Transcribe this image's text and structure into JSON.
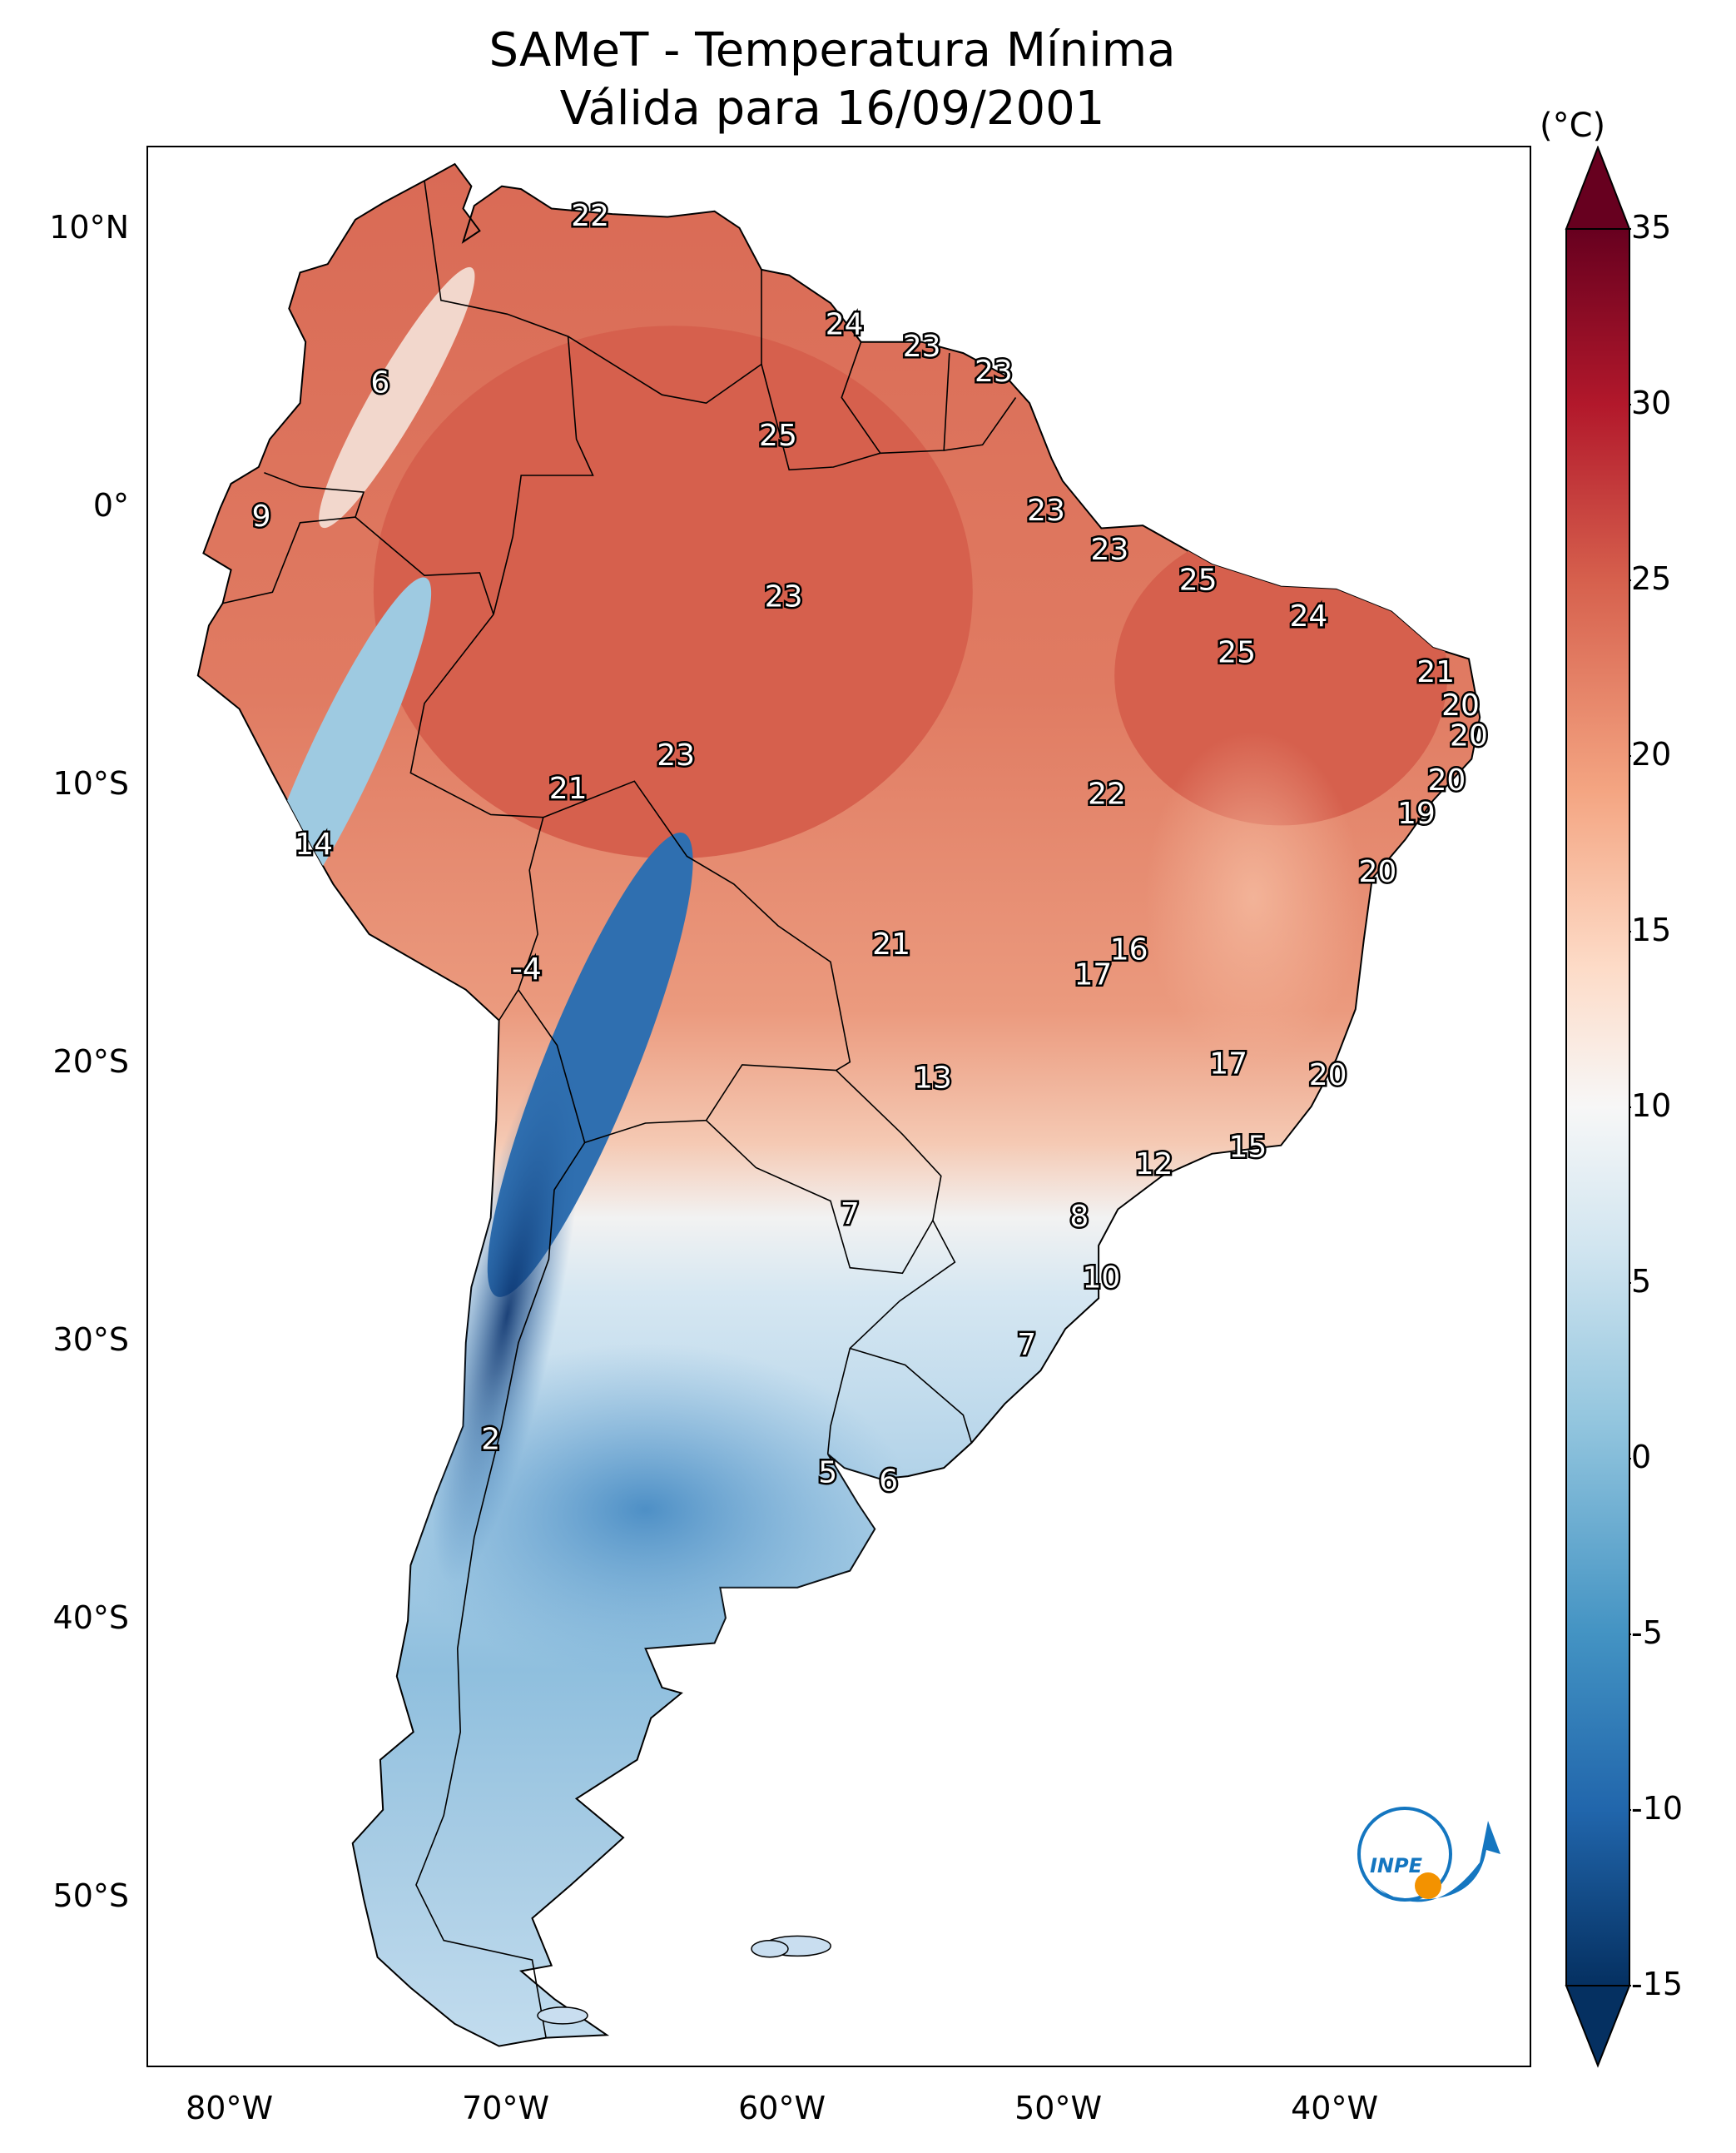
{
  "title": {
    "line1": "SAMeT - Temperatura Mínima",
    "line2": "Válida para 16/09/2001"
  },
  "map": {
    "region": "South America",
    "projection": "PlateCarree",
    "lon_range": [
      -83,
      -33
    ],
    "lat_range": [
      -56,
      13
    ],
    "lat_ticks": [
      "10°N",
      "0°",
      "10°S",
      "20°S",
      "30°S",
      "40°S",
      "50°S"
    ],
    "lat_tick_values": [
      10,
      0,
      -10,
      -20,
      -30,
      -40,
      -50
    ],
    "lon_ticks": [
      "80°W",
      "70°W",
      "60°W",
      "50°W",
      "40°W"
    ],
    "lon_tick_values": [
      -80,
      -70,
      -60,
      -50,
      -40
    ]
  },
  "colorbar": {
    "unit": "(°C)",
    "colormap": "RdBu_r",
    "range": [
      -15,
      35
    ],
    "extend": "both",
    "ticks": [
      "35",
      "30",
      "25",
      "20",
      "15",
      "10",
      "5",
      "0",
      "-5",
      "-10",
      "-15"
    ],
    "tick_values": [
      35,
      30,
      25,
      20,
      15,
      10,
      5,
      0,
      -5,
      -10,
      -15
    ],
    "colors": {
      "min": "#08306b",
      "cold": "#2f6fb0",
      "cool": "#9ecae1",
      "neutral": "#f7f7f7",
      "warm": "#f4a582",
      "hot": "#d6604d",
      "max": "#67001f"
    }
  },
  "station_values": [
    {
      "v": "22",
      "lon": -67.0,
      "lat": 10.6
    },
    {
      "v": "6",
      "lon": -74.6,
      "lat": 4.6
    },
    {
      "v": "24",
      "lon": -57.8,
      "lat": 6.7
    },
    {
      "v": "23",
      "lon": -55.0,
      "lat": 5.9
    },
    {
      "v": "23",
      "lon": -52.4,
      "lat": 5.0
    },
    {
      "v": "25",
      "lon": -60.2,
      "lat": 2.7
    },
    {
      "v": "9",
      "lon": -78.9,
      "lat": -0.2
    },
    {
      "v": "23",
      "lon": -50.5,
      "lat": 0.0
    },
    {
      "v": "23",
      "lon": -48.2,
      "lat": -1.4
    },
    {
      "v": "25",
      "lon": -45.0,
      "lat": -2.5
    },
    {
      "v": "24",
      "lon": -41.0,
      "lat": -3.8
    },
    {
      "v": "23",
      "lon": -60.0,
      "lat": -3.1
    },
    {
      "v": "25",
      "lon": -43.6,
      "lat": -5.1
    },
    {
      "v": "21",
      "lon": -36.4,
      "lat": -5.8
    },
    {
      "v": "20",
      "lon": -35.5,
      "lat": -7.0
    },
    {
      "v": "20",
      "lon": -35.2,
      "lat": -8.1
    },
    {
      "v": "23",
      "lon": -63.9,
      "lat": -8.8
    },
    {
      "v": "21",
      "lon": -67.8,
      "lat": -10.0
    },
    {
      "v": "22",
      "lon": -48.3,
      "lat": -10.2
    },
    {
      "v": "20",
      "lon": -36.0,
      "lat": -9.7
    },
    {
      "v": "19",
      "lon": -37.1,
      "lat": -10.9
    },
    {
      "v": "14",
      "lon": -77.0,
      "lat": -12.0
    },
    {
      "v": "20",
      "lon": -38.5,
      "lat": -13.0
    },
    {
      "v": "-4",
      "lon": -69.3,
      "lat": -16.5
    },
    {
      "v": "21",
      "lon": -56.1,
      "lat": -15.6
    },
    {
      "v": "16",
      "lon": -47.5,
      "lat": -15.8
    },
    {
      "v": "17",
      "lon": -48.8,
      "lat": -16.7
    },
    {
      "v": "17",
      "lon": -43.9,
      "lat": -19.9
    },
    {
      "v": "13",
      "lon": -54.6,
      "lat": -20.4
    },
    {
      "v": "20",
      "lon": -40.3,
      "lat": -20.3
    },
    {
      "v": "12",
      "lon": -46.6,
      "lat": -23.5
    },
    {
      "v": "15",
      "lon": -43.2,
      "lat": -22.9
    },
    {
      "v": "7",
      "lon": -57.6,
      "lat": -25.3
    },
    {
      "v": "8",
      "lon": -49.3,
      "lat": -25.4
    },
    {
      "v": "10",
      "lon": -48.5,
      "lat": -27.6
    },
    {
      "v": "7",
      "lon": -51.2,
      "lat": -30.0
    },
    {
      "v": "2",
      "lon": -70.6,
      "lat": -33.4
    },
    {
      "v": "5",
      "lon": -58.4,
      "lat": -34.6
    },
    {
      "v": "6",
      "lon": -56.2,
      "lat": -34.9
    }
  ],
  "logo": {
    "text": "INPE",
    "colors": {
      "blue": "#1476c0",
      "orange": "#f39200"
    }
  }
}
